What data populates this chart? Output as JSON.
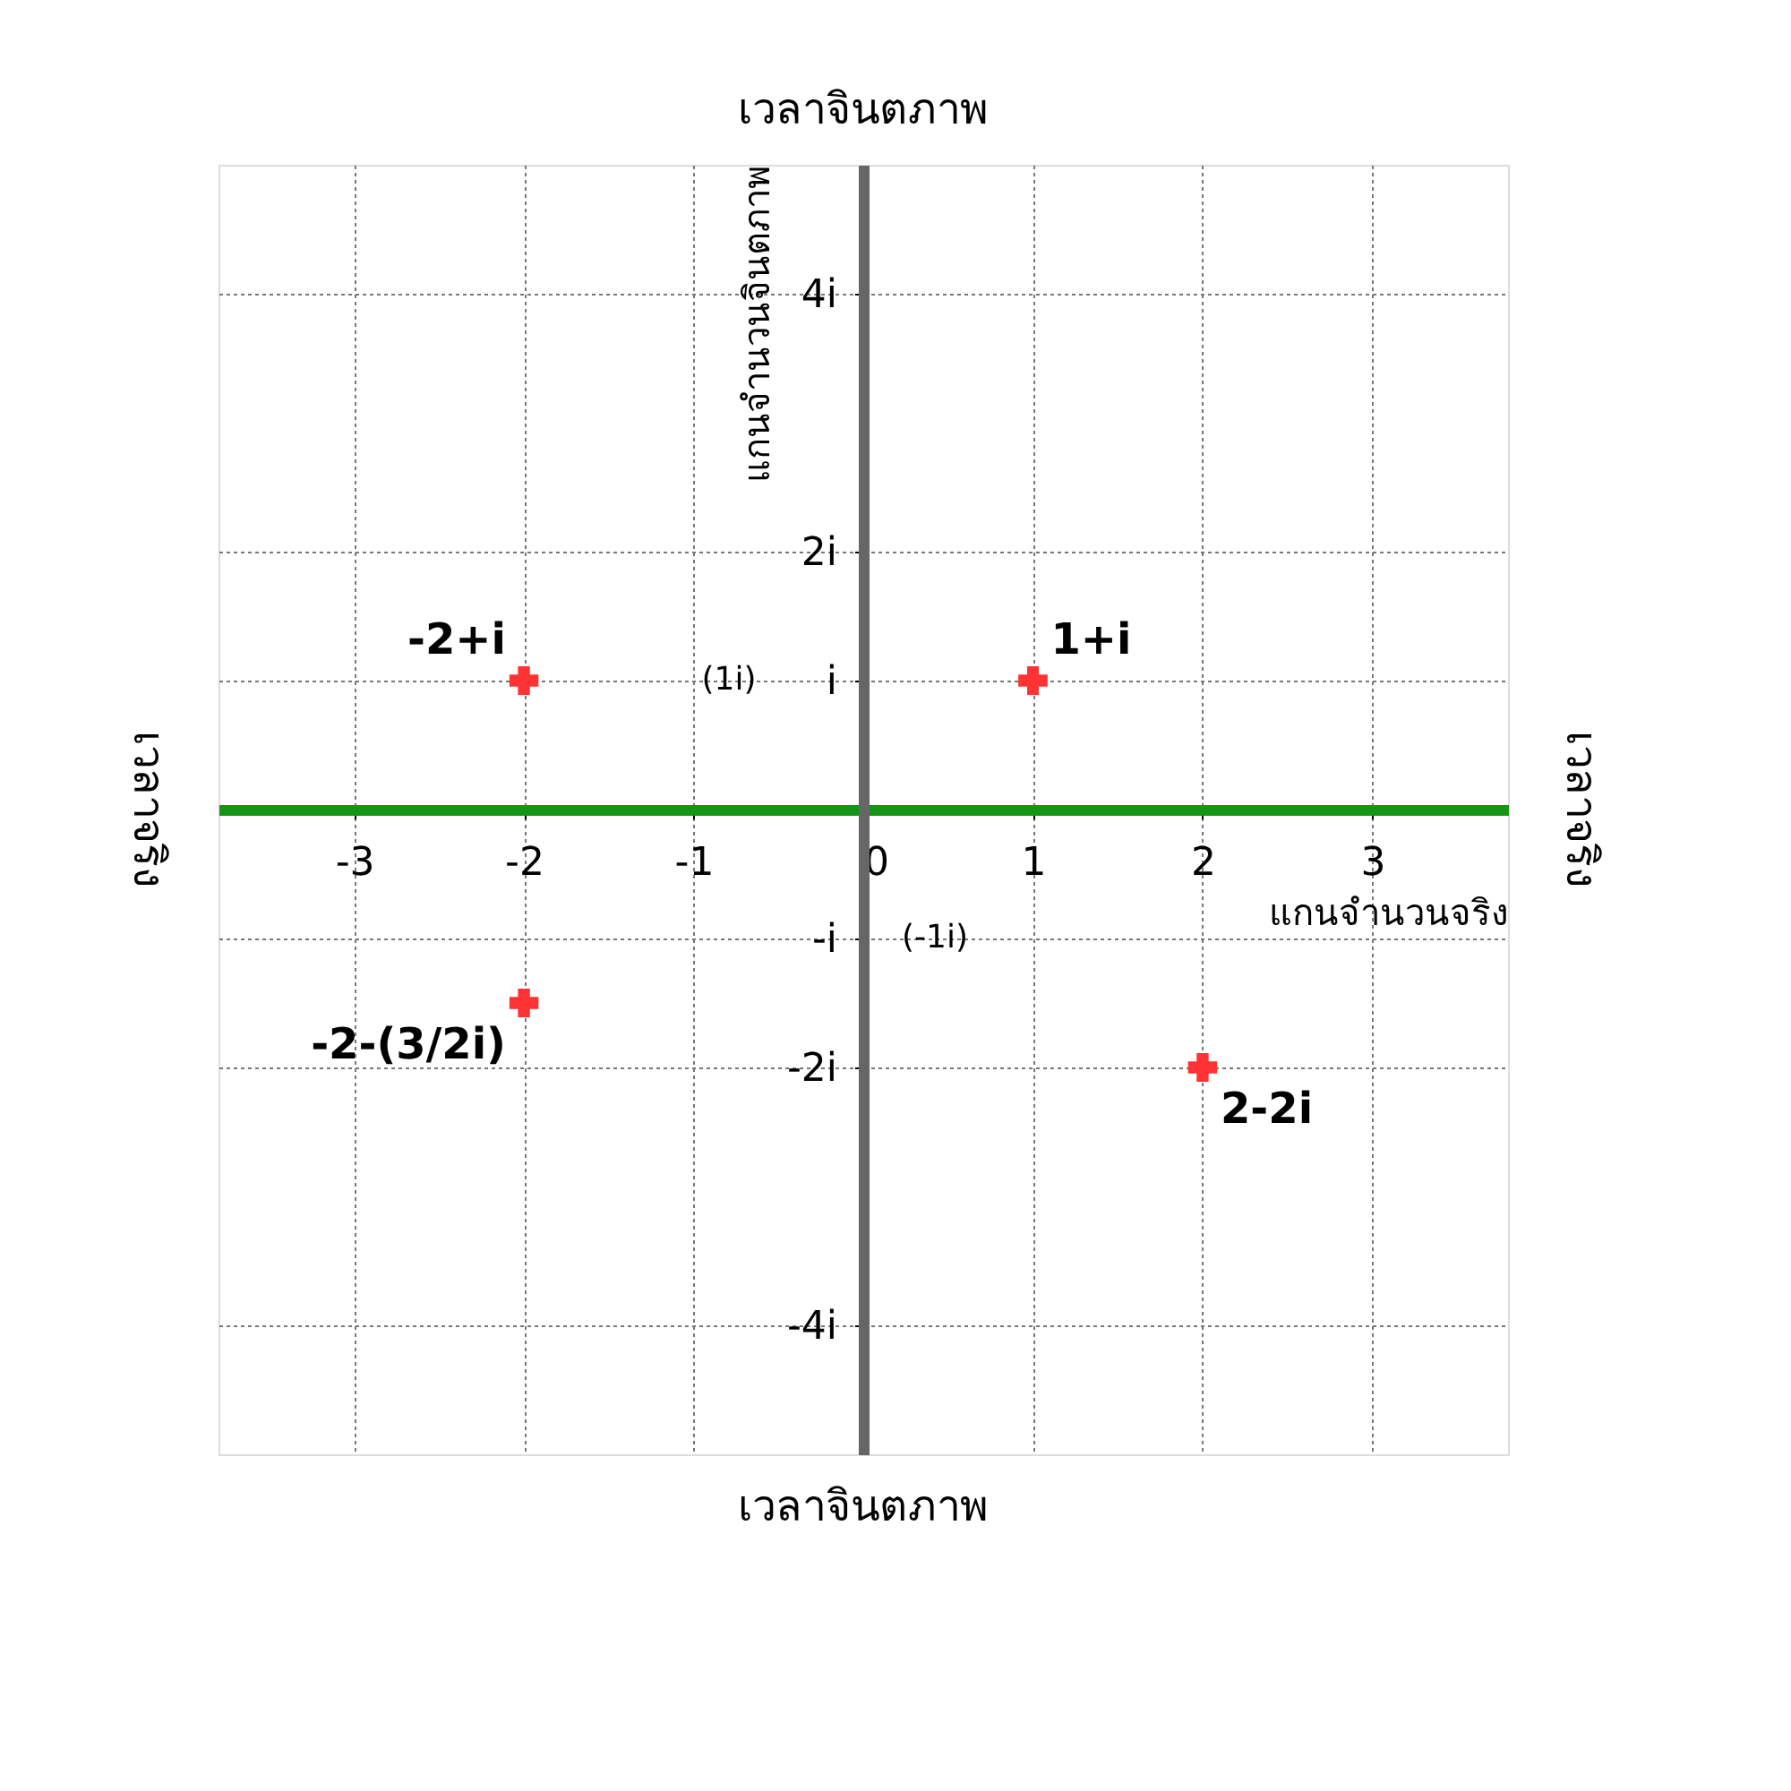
{
  "chart_data": {
    "type": "scatter",
    "xlabel": "แกนจำนวนจริง",
    "ylabel": "แกนจำนวนจินตภาพ",
    "x": [
      -2,
      1,
      -2,
      2
    ],
    "values": [
      1,
      1,
      -1.5,
      -2
    ],
    "value_labels": [
      "-2+i",
      "1+i",
      "-2-(3/2i)",
      "2-2i"
    ],
    "color": "#ff3333",
    "marker": "cross",
    "xlim": [
      -3.8,
      3.8
    ],
    "ylim": [
      -5,
      5
    ],
    "xticks": [
      -3,
      -2,
      -1,
      0,
      1,
      2,
      3
    ],
    "yticks": [
      {
        "value": 4,
        "label": "4i"
      },
      {
        "value": 2,
        "label": "2i"
      },
      {
        "value": 1,
        "label": "i"
      },
      {
        "value": -1,
        "label": "-i"
      },
      {
        "value": -2,
        "label": "-2i"
      },
      {
        "value": -4,
        "label": "-4i"
      }
    ],
    "grid": true,
    "annotations": [
      "เวลาจินตภาพ",
      "เวลาจินตภาพ",
      "เวลาจริง",
      "เวลาจริง",
      "(1i)",
      "(-1i)"
    ]
  }
}
